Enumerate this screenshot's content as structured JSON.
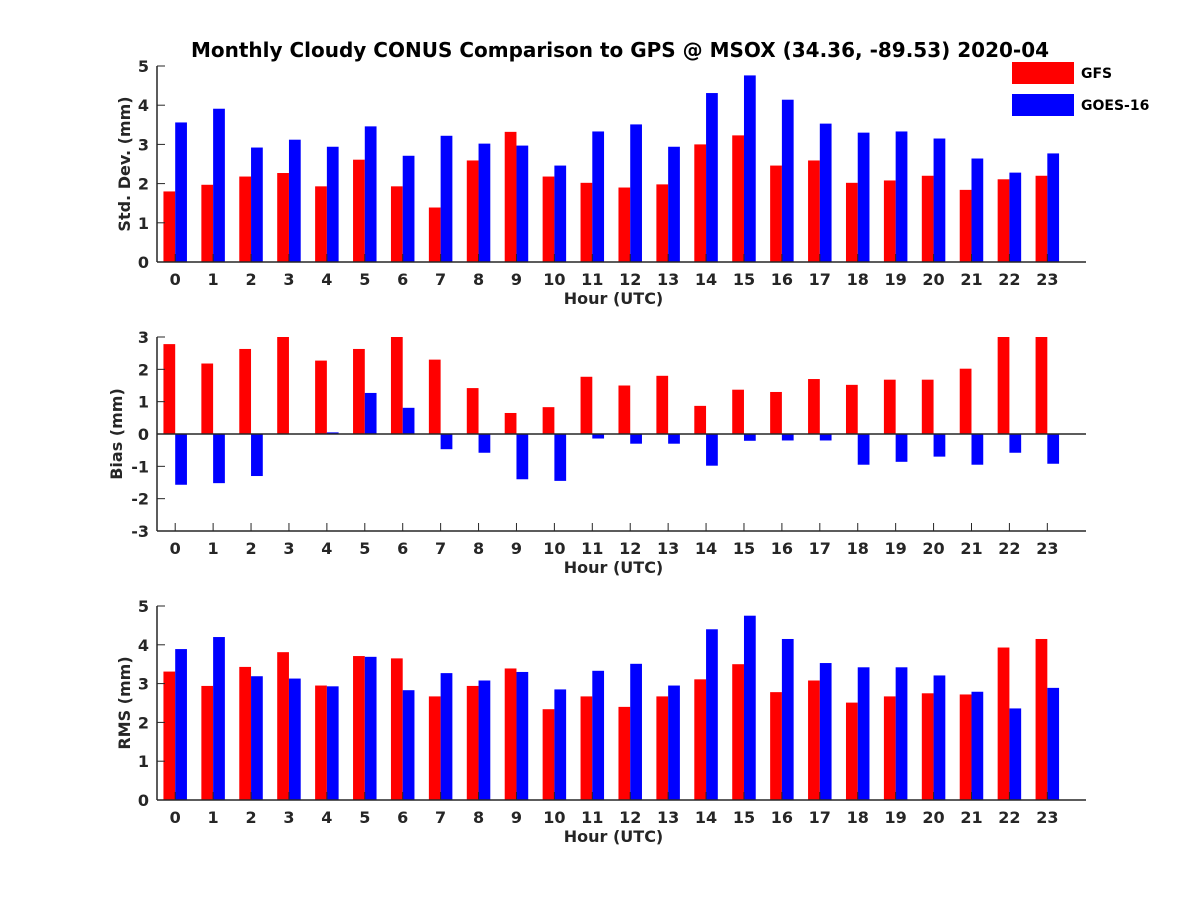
{
  "figure_title": "Monthly Cloudy CONUS Comparison to GPS @ MSOX (34.36, -89.53) 2020-04",
  "colors": {
    "GFS": "#ff0000",
    "GOES-16": "#0000ff",
    "axis": "#262626"
  },
  "legend": {
    "placement": "top-right",
    "entries": [
      "GFS",
      "GOES-16"
    ]
  },
  "chart_data": [
    {
      "type": "bar",
      "title": "Monthly Cloudy CONUS Comparison to GPS @ MSOX (34.36, -89.53) 2020-04",
      "xlabel": "Hour (UTC)",
      "ylabel": "Std. Dev. (mm)",
      "ylim": [
        0,
        5
      ],
      "yticks": [
        0,
        1,
        2,
        3,
        4,
        5
      ],
      "grid": false,
      "categories": [
        "0",
        "1",
        "2",
        "3",
        "4",
        "5",
        "6",
        "7",
        "8",
        "9",
        "10",
        "11",
        "12",
        "13",
        "14",
        "15",
        "16",
        "17",
        "18",
        "19",
        "20",
        "21",
        "22",
        "23"
      ],
      "series": [
        {
          "name": "GFS",
          "values": [
            1.8,
            1.97,
            2.18,
            2.27,
            1.93,
            2.61,
            1.93,
            1.39,
            2.59,
            3.32,
            2.18,
            2.02,
            1.9,
            1.98,
            3.0,
            3.23,
            2.46,
            2.59,
            2.02,
            2.08,
            2.2,
            1.84,
            2.11,
            2.2
          ]
        },
        {
          "name": "GOES-16",
          "values": [
            3.56,
            3.91,
            2.92,
            3.12,
            2.94,
            3.46,
            2.71,
            3.22,
            3.02,
            2.97,
            2.46,
            3.33,
            3.51,
            2.94,
            4.31,
            4.76,
            4.14,
            3.53,
            3.3,
            3.33,
            3.15,
            2.64,
            2.28,
            2.77
          ]
        }
      ]
    },
    {
      "type": "bar",
      "xlabel": "Hour (UTC)",
      "ylabel": "Bias (mm)",
      "ylim": [
        -3,
        3
      ],
      "yticks": [
        -3,
        -2,
        -1,
        0,
        1,
        2,
        3
      ],
      "grid": false,
      "categories": [
        "0",
        "1",
        "2",
        "3",
        "4",
        "5",
        "6",
        "7",
        "8",
        "9",
        "10",
        "11",
        "12",
        "13",
        "14",
        "15",
        "16",
        "17",
        "18",
        "19",
        "20",
        "21",
        "22",
        "23"
      ],
      "series": [
        {
          "name": "GFS",
          "values": [
            2.78,
            2.18,
            2.63,
            3.0,
            2.27,
            2.63,
            3.0,
            2.3,
            1.42,
            0.65,
            0.83,
            1.77,
            1.5,
            1.8,
            0.87,
            1.37,
            1.3,
            1.7,
            1.52,
            1.68,
            1.68,
            2.02,
            3.0,
            3.0
          ]
        },
        {
          "name": "GOES-16",
          "values": [
            -1.57,
            -1.52,
            -1.3,
            0.0,
            0.05,
            1.27,
            0.81,
            -0.47,
            -0.58,
            -1.4,
            -1.45,
            -0.14,
            -0.3,
            -0.3,
            -0.98,
            -0.21,
            -0.2,
            -0.2,
            -0.95,
            -0.86,
            -0.7,
            -0.95,
            -0.58,
            -0.92
          ]
        }
      ]
    },
    {
      "type": "bar",
      "xlabel": "Hour (UTC)",
      "ylabel": "RMS (mm)",
      "ylim": [
        0,
        5
      ],
      "yticks": [
        0,
        1,
        2,
        3,
        4,
        5
      ],
      "grid": false,
      "categories": [
        "0",
        "1",
        "2",
        "3",
        "4",
        "5",
        "6",
        "7",
        "8",
        "9",
        "10",
        "11",
        "12",
        "13",
        "14",
        "15",
        "16",
        "17",
        "18",
        "19",
        "20",
        "21",
        "22",
        "23"
      ],
      "series": [
        {
          "name": "GFS",
          "values": [
            3.31,
            2.94,
            3.43,
            3.81,
            2.95,
            3.71,
            3.65,
            2.67,
            2.94,
            3.39,
            2.34,
            2.67,
            2.4,
            2.67,
            3.11,
            3.5,
            2.78,
            3.08,
            2.51,
            2.67,
            2.75,
            2.72,
            3.93,
            4.15
          ]
        },
        {
          "name": "GOES-16",
          "values": [
            3.89,
            4.2,
            3.19,
            3.13,
            2.93,
            3.69,
            2.83,
            3.27,
            3.08,
            3.3,
            2.85,
            3.33,
            3.51,
            2.95,
            4.4,
            4.75,
            4.15,
            3.53,
            3.42,
            3.42,
            3.21,
            2.79,
            2.36,
            2.89
          ]
        }
      ]
    }
  ]
}
